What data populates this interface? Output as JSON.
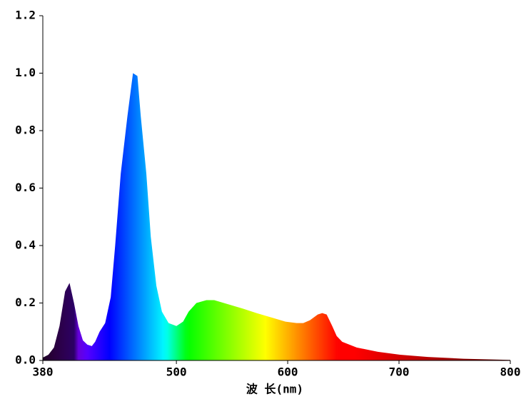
{
  "chart_data": {
    "type": "area",
    "x_label": "波 长(nm)",
    "x": [
      380,
      385,
      390,
      395,
      400,
      404,
      408,
      412,
      416,
      420,
      424,
      427,
      431,
      436,
      441,
      445,
      450,
      456,
      461,
      465,
      468,
      473,
      477,
      482,
      487,
      493,
      500,
      506,
      511,
      518,
      527,
      534,
      547,
      560,
      572,
      585,
      598,
      608,
      614,
      620,
      627,
      631,
      635,
      640,
      644,
      649,
      662,
      681,
      701,
      726,
      758,
      800
    ],
    "values": [
      0.01,
      0.02,
      0.045,
      0.12,
      0.24,
      0.27,
      0.2,
      0.12,
      0.07,
      0.055,
      0.05,
      0.065,
      0.1,
      0.13,
      0.22,
      0.4,
      0.65,
      0.85,
      1.0,
      0.99,
      0.85,
      0.65,
      0.43,
      0.26,
      0.17,
      0.13,
      0.12,
      0.135,
      0.17,
      0.2,
      0.21,
      0.21,
      0.195,
      0.18,
      0.165,
      0.15,
      0.135,
      0.13,
      0.13,
      0.14,
      0.16,
      0.165,
      0.16,
      0.12,
      0.085,
      0.065,
      0.045,
      0.03,
      0.02,
      0.012,
      0.006,
      0.002
    ],
    "xlim": [
      380,
      800
    ],
    "xticks": [
      380,
      500,
      600,
      700,
      800
    ],
    "ylim": [
      0,
      1.2
    ],
    "yticks": [
      {
        "value": 0,
        "label": "0.0"
      },
      0.2,
      0.4,
      0.6,
      0.8,
      {
        "value": 1,
        "label": "1.0"
      },
      1.2
    ]
  }
}
